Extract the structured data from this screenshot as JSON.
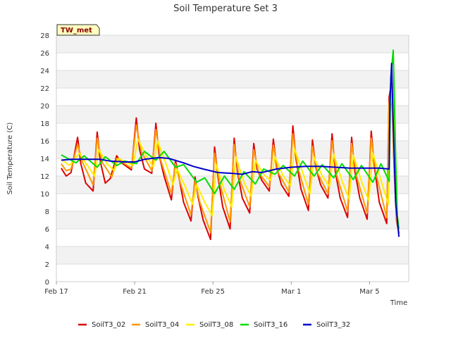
{
  "chart_data": {
    "type": "line",
    "title": "Soil Temperature Set 3",
    "xlabel": "Time",
    "ylabel": "Soil Temperature (C)",
    "ylim": [
      0,
      28
    ],
    "yticks": [
      0,
      2,
      4,
      6,
      8,
      10,
      12,
      14,
      16,
      18,
      20,
      22,
      24,
      26,
      28
    ],
    "xlim": [
      "Feb 17",
      "Mar 7"
    ],
    "xticks": [
      "Feb 17",
      "Feb 21",
      "Feb 25",
      "Mar 1",
      "Mar 5"
    ],
    "grid": true,
    "grid_style": "alternating horizontal bands",
    "legend_position": "bottom",
    "station_badge": "TW_met",
    "series": [
      {
        "name": "SoilT3_02",
        "color": "#dd0000",
        "points": [
          [
            "Feb 17 06:00",
            12.9
          ],
          [
            "Feb 17 12:00",
            12.0
          ],
          [
            "Feb 17 18:00",
            12.4
          ],
          [
            "Feb 18 02:00",
            16.4
          ],
          [
            "Feb 18 06:00",
            13.4
          ],
          [
            "Feb 18 12:00",
            11.2
          ],
          [
            "Feb 18 21:00",
            10.3
          ],
          [
            "Feb 19 02:00",
            17.0
          ],
          [
            "Feb 19 06:00",
            13.6
          ],
          [
            "Feb 19 12:00",
            11.2
          ],
          [
            "Feb 19 18:00",
            11.7
          ],
          [
            "Feb 20 02:00",
            14.3
          ],
          [
            "Feb 20 08:00",
            13.5
          ],
          [
            "Feb 20 20:00",
            12.7
          ],
          [
            "Feb 21 02:00",
            18.6
          ],
          [
            "Feb 21 06:00",
            15.0
          ],
          [
            "Feb 21 12:00",
            12.8
          ],
          [
            "Feb 21 21:00",
            12.3
          ],
          [
            "Feb 22 02:00",
            18.0
          ],
          [
            "Feb 22 06:00",
            14.4
          ],
          [
            "Feb 22 12:00",
            12.0
          ],
          [
            "Feb 22 21:00",
            9.3
          ],
          [
            "Feb 23 02:00",
            13.8
          ],
          [
            "Feb 23 06:00",
            12.0
          ],
          [
            "Feb 23 12:00",
            9.0
          ],
          [
            "Feb 23 21:00",
            6.9
          ],
          [
            "Feb 24 02:00",
            11.9
          ],
          [
            "Feb 24 06:00",
            9.5
          ],
          [
            "Feb 24 12:00",
            7.0
          ],
          [
            "Feb 24 21:00",
            4.8
          ],
          [
            "Feb 25 02:00",
            15.3
          ],
          [
            "Feb 25 06:00",
            12.0
          ],
          [
            "Feb 25 12:00",
            8.5
          ],
          [
            "Feb 25 21:00",
            6.0
          ],
          [
            "Feb 26 02:00",
            16.3
          ],
          [
            "Feb 26 06:00",
            12.5
          ],
          [
            "Feb 26 12:00",
            9.5
          ],
          [
            "Feb 26 21:00",
            7.8
          ],
          [
            "Feb 27 02:00",
            15.7
          ],
          [
            "Feb 27 06:00",
            12.8
          ],
          [
            "Feb 27 12:00",
            11.5
          ],
          [
            "Feb 27 21:00",
            10.3
          ],
          [
            "Feb 28 02:00",
            16.2
          ],
          [
            "Feb 28 06:00",
            13.0
          ],
          [
            "Feb 28 12:00",
            11.0
          ],
          [
            "Feb 28 21:00",
            9.7
          ],
          [
            "Mar 1 02:00",
            17.7
          ],
          [
            "Mar 1 06:00",
            13.8
          ],
          [
            "Mar 1 12:00",
            10.5
          ],
          [
            "Mar 1 21:00",
            8.1
          ],
          [
            "Mar 2 02:00",
            16.1
          ],
          [
            "Mar 2 06:00",
            13.0
          ],
          [
            "Mar 2 12:00",
            11.0
          ],
          [
            "Mar 2 21:00",
            9.5
          ],
          [
            "Mar 3 02:00",
            16.8
          ],
          [
            "Mar 3 06:00",
            12.5
          ],
          [
            "Mar 3 12:00",
            9.5
          ],
          [
            "Mar 3 21:00",
            7.3
          ],
          [
            "Mar 4 02:00",
            16.4
          ],
          [
            "Mar 4 06:00",
            12.5
          ],
          [
            "Mar 4 12:00",
            9.5
          ],
          [
            "Mar 4 21:00",
            7.1
          ],
          [
            "Mar 5 02:00",
            17.1
          ],
          [
            "Mar 5 06:00",
            13.0
          ],
          [
            "Mar 5 12:00",
            9.0
          ],
          [
            "Mar 5 21:00",
            6.6
          ],
          [
            "Mar 6 00:00",
            21.0
          ],
          [
            "Mar 6 03:00",
            22.6
          ],
          [
            "Mar 6 06:00",
            13.0
          ],
          [
            "Mar 6 09:00",
            7.0
          ],
          [
            "Mar 6 12:00",
            5.5
          ]
        ]
      },
      {
        "name": "SoilT3_04",
        "color": "#ff9900",
        "points": [
          [
            "Feb 17 06:00",
            13.4
          ],
          [
            "Feb 17 12:00",
            12.6
          ],
          [
            "Feb 17 18:00",
            12.8
          ],
          [
            "Feb 18 02:00",
            15.6
          ],
          [
            "Feb 18 08:00",
            13.6
          ],
          [
            "Feb 18 21:00",
            11.0
          ],
          [
            "Feb 19 02:00",
            16.3
          ],
          [
            "Feb 19 08:00",
            13.6
          ],
          [
            "Feb 19 20:00",
            11.9
          ],
          [
            "Feb 20 02:00",
            14.0
          ],
          [
            "Feb 20 20:00",
            12.9
          ],
          [
            "Feb 21 02:00",
            17.8
          ],
          [
            "Feb 21 08:00",
            14.8
          ],
          [
            "Feb 21 21:00",
            12.6
          ],
          [
            "Feb 22 02:00",
            17.3
          ],
          [
            "Feb 22 08:00",
            13.8
          ],
          [
            "Feb 22 21:00",
            10.0
          ],
          [
            "Feb 23 02:00",
            13.4
          ],
          [
            "Feb 23 08:00",
            11.2
          ],
          [
            "Feb 23 21:00",
            7.6
          ],
          [
            "Feb 24 02:00",
            11.5
          ],
          [
            "Feb 24 08:00",
            9.0
          ],
          [
            "Feb 24 21:00",
            5.6
          ],
          [
            "Feb 25 02:00",
            14.6
          ],
          [
            "Feb 25 08:00",
            11.3
          ],
          [
            "Feb 25 21:00",
            6.8
          ],
          [
            "Feb 26 02:00",
            15.6
          ],
          [
            "Feb 26 08:00",
            11.8
          ],
          [
            "Feb 26 21:00",
            8.5
          ],
          [
            "Feb 27 02:00",
            15.0
          ],
          [
            "Feb 27 08:00",
            12.4
          ],
          [
            "Feb 27 21:00",
            10.8
          ],
          [
            "Feb 28 02:00",
            15.5
          ],
          [
            "Feb 28 08:00",
            12.4
          ],
          [
            "Feb 28 21:00",
            10.2
          ],
          [
            "Mar 1 02:00",
            16.8
          ],
          [
            "Mar 1 08:00",
            13.0
          ],
          [
            "Mar 1 21:00",
            8.8
          ],
          [
            "Mar 2 02:00",
            15.4
          ],
          [
            "Mar 2 08:00",
            12.4
          ],
          [
            "Mar 2 21:00",
            10.0
          ],
          [
            "Mar 3 02:00",
            16.0
          ],
          [
            "Mar 3 08:00",
            12.0
          ],
          [
            "Mar 3 21:00",
            8.0
          ],
          [
            "Mar 4 02:00",
            15.7
          ],
          [
            "Mar 4 08:00",
            12.0
          ],
          [
            "Mar 4 21:00",
            7.8
          ],
          [
            "Mar 5 02:00",
            16.3
          ],
          [
            "Mar 5 08:00",
            12.2
          ],
          [
            "Mar 5 21:00",
            7.3
          ],
          [
            "Mar 6 00:00",
            20.0
          ],
          [
            "Mar 6 03:00",
            23.0
          ],
          [
            "Mar 6 06:00",
            13.5
          ],
          [
            "Mar 6 09:00",
            7.2
          ],
          [
            "Mar 6 12:00",
            5.6
          ]
        ]
      },
      {
        "name": "SoilT3_08",
        "color": "#ffee00",
        "points": [
          [
            "Feb 17 06:00",
            13.9
          ],
          [
            "Feb 17 16:00",
            13.2
          ],
          [
            "Feb 18 04:00",
            14.6
          ],
          [
            "Feb 18 14:00",
            13.2
          ],
          [
            "Feb 18 23:00",
            12.0
          ],
          [
            "Feb 19 04:00",
            15.0
          ],
          [
            "Feb 19 14:00",
            13.4
          ],
          [
            "Feb 19 23:00",
            12.6
          ],
          [
            "Feb 20 04:00",
            14.0
          ],
          [
            "Feb 20 22:00",
            13.2
          ],
          [
            "Feb 21 04:00",
            16.2
          ],
          [
            "Feb 21 14:00",
            14.3
          ],
          [
            "Feb 21 23:00",
            13.0
          ],
          [
            "Feb 22 04:00",
            16.0
          ],
          [
            "Feb 22 14:00",
            13.5
          ],
          [
            "Feb 22 23:00",
            11.0
          ],
          [
            "Feb 23 04:00",
            12.8
          ],
          [
            "Feb 23 14:00",
            10.8
          ],
          [
            "Feb 23 23:00",
            8.8
          ],
          [
            "Feb 24 04:00",
            11.0
          ],
          [
            "Feb 24 14:00",
            9.0
          ],
          [
            "Feb 24 23:00",
            7.5
          ],
          [
            "Feb 25 04:00",
            13.3
          ],
          [
            "Feb 25 14:00",
            10.4
          ],
          [
            "Feb 25 23:00",
            8.5
          ],
          [
            "Feb 26 04:00",
            14.2
          ],
          [
            "Feb 26 14:00",
            11.3
          ],
          [
            "Feb 26 23:00",
            9.7
          ],
          [
            "Feb 27 04:00",
            13.8
          ],
          [
            "Feb 27 14:00",
            12.2
          ],
          [
            "Feb 27 23:00",
            11.5
          ],
          [
            "Feb 28 04:00",
            14.2
          ],
          [
            "Feb 28 14:00",
            12.0
          ],
          [
            "Feb 28 23:00",
            10.9
          ],
          [
            "Mar 1 04:00",
            15.1
          ],
          [
            "Mar 1 14:00",
            12.4
          ],
          [
            "Mar 1 23:00",
            10.0
          ],
          [
            "Mar 2 04:00",
            14.1
          ],
          [
            "Mar 2 14:00",
            12.0
          ],
          [
            "Mar 2 23:00",
            10.8
          ],
          [
            "Mar 3 04:00",
            14.5
          ],
          [
            "Mar 3 14:00",
            11.5
          ],
          [
            "Mar 3 23:00",
            9.4
          ],
          [
            "Mar 4 04:00",
            14.4
          ],
          [
            "Mar 4 14:00",
            11.4
          ],
          [
            "Mar 4 23:00",
            9.2
          ],
          [
            "Mar 5 04:00",
            14.6
          ],
          [
            "Mar 5 14:00",
            11.5
          ],
          [
            "Mar 5 23:00",
            8.8
          ],
          [
            "Mar 6 01:00",
            19.0
          ],
          [
            "Mar 6 04:00",
            22.5
          ],
          [
            "Mar 6 07:00",
            13.5
          ],
          [
            "Mar 6 10:00",
            7.5
          ],
          [
            "Mar 6 12:00",
            5.8
          ]
        ]
      },
      {
        "name": "SoilT3_16",
        "color": "#00dd00",
        "points": [
          [
            "Feb 17 06:00",
            14.4
          ],
          [
            "Feb 17 16:00",
            13.9
          ],
          [
            "Feb 18 00:00",
            13.5
          ],
          [
            "Feb 18 10:00",
            14.3
          ],
          [
            "Feb 19 02:00",
            13.0
          ],
          [
            "Feb 19 12:00",
            14.2
          ],
          [
            "Feb 20 02:00",
            13.2
          ],
          [
            "Feb 20 12:00",
            13.7
          ],
          [
            "Feb 21 02:00",
            13.4
          ],
          [
            "Feb 21 12:00",
            14.8
          ],
          [
            "Feb 22 02:00",
            13.8
          ],
          [
            "Feb 22 12:00",
            14.8
          ],
          [
            "Feb 23 02:00",
            13.0
          ],
          [
            "Feb 23 12:00",
            13.3
          ],
          [
            "Feb 24 04:00",
            11.3
          ],
          [
            "Feb 24 14:00",
            11.8
          ],
          [
            "Feb 25 02:00",
            10.0
          ],
          [
            "Feb 25 14:00",
            12.0
          ],
          [
            "Feb 26 02:00",
            10.5
          ],
          [
            "Feb 26 14:00",
            12.5
          ],
          [
            "Feb 27 04:00",
            11.1
          ],
          [
            "Feb 27 14:00",
            12.8
          ],
          [
            "Feb 28 04:00",
            12.2
          ],
          [
            "Feb 28 14:00",
            13.2
          ],
          [
            "Mar 1 04:00",
            12.0
          ],
          [
            "Mar 1 14:00",
            13.7
          ],
          [
            "Mar 2 04:00",
            12.0
          ],
          [
            "Mar 2 14:00",
            13.3
          ],
          [
            "Mar 3 04:00",
            11.8
          ],
          [
            "Mar 3 14:00",
            13.4
          ],
          [
            "Mar 4 04:00",
            11.6
          ],
          [
            "Mar 4 14:00",
            13.2
          ],
          [
            "Mar 5 04:00",
            11.3
          ],
          [
            "Mar 5 14:00",
            13.4
          ],
          [
            "Mar 6 00:00",
            11.4
          ],
          [
            "Mar 6 02:00",
            23.2
          ],
          [
            "Mar 6 05:00",
            26.3
          ],
          [
            "Mar 6 08:00",
            14.0
          ],
          [
            "Mar 6 10:00",
            7.5
          ],
          [
            "Mar 6 12:00",
            6.0
          ]
        ]
      },
      {
        "name": "SoilT3_32",
        "color": "#0000cc",
        "points": [
          [
            "Feb 17 06:00",
            13.8
          ],
          [
            "Feb 17 18:00",
            13.9
          ],
          [
            "Feb 18 12:00",
            13.9
          ],
          [
            "Feb 19 06:00",
            13.9
          ],
          [
            "Feb 19 18:00",
            13.7
          ],
          [
            "Feb 20 12:00",
            13.6
          ],
          [
            "Feb 21 00:00",
            13.6
          ],
          [
            "Feb 21 12:00",
            13.9
          ],
          [
            "Feb 22 06:00",
            14.1
          ],
          [
            "Feb 22 18:00",
            14.0
          ],
          [
            "Feb 23 12:00",
            13.5
          ],
          [
            "Feb 24 00:00",
            13.1
          ],
          [
            "Feb 24 12:00",
            12.8
          ],
          [
            "Feb 25 06:00",
            12.4
          ],
          [
            "Feb 26 00:00",
            12.3
          ],
          [
            "Feb 26 12:00",
            12.2
          ],
          [
            "Feb 27 00:00",
            12.5
          ],
          [
            "Feb 27 12:00",
            12.4
          ],
          [
            "Feb 28 06:00",
            12.8
          ],
          [
            "Mar 1 00:00",
            13.0
          ],
          [
            "Mar 1 18:00",
            13.1
          ],
          [
            "Mar 2 12:00",
            13.1
          ],
          [
            "Mar 3 06:00",
            13.0
          ],
          [
            "Mar 4 00:00",
            12.9
          ],
          [
            "Mar 4 18:00",
            12.9
          ],
          [
            "Mar 5 12:00",
            12.9
          ],
          [
            "Mar 6 00:00",
            12.8
          ],
          [
            "Mar 6 01:00",
            20.5
          ],
          [
            "Mar 6 03:00",
            24.8
          ],
          [
            "Mar 6 05:00",
            18.0
          ],
          [
            "Mar 6 08:00",
            9.0
          ],
          [
            "Mar 6 11:00",
            6.0
          ],
          [
            "Mar 6 12:00",
            5.1
          ]
        ]
      }
    ]
  }
}
